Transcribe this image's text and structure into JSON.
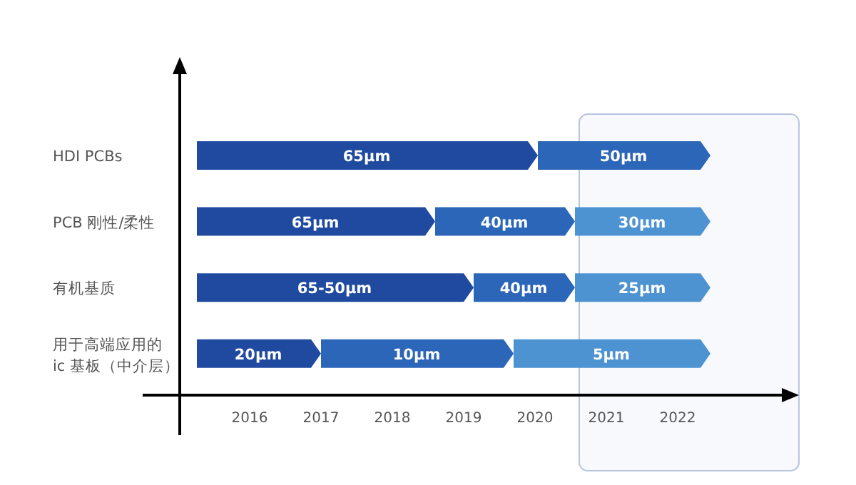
{
  "chart_data": {
    "type": "bar",
    "orientation": "horizontal",
    "categories": [
      "HDI PCBs",
      "PCB 刚性/柔性",
      "有机基质",
      "用于高端应用的 ic 基板（中介层）"
    ],
    "series": [
      {
        "color": "#1f4aa0",
        "base": [
          2015.26,
          2015.26,
          2015.26,
          2015.26
        ],
        "values": [
          4.78,
          3.34,
          3.88,
          1.74
        ]
      },
      {
        "color": "#2b66b8",
        "base": [
          2020.04,
          2018.6,
          2019.14,
          2017.0
        ],
        "values": [
          2.42,
          1.96,
          1.42,
          2.7
        ]
      },
      {
        "color": "#4d93d2",
        "base": [
          null,
          2020.56,
          2020.56,
          2019.7
        ],
        "values": [
          null,
          1.9,
          1.9,
          2.76
        ]
      }
    ],
    "annotations": [
      "65μm",
      "50μm",
      "65μm",
      "40μm",
      "30μm",
      "65-50μm",
      "40μm",
      "25μm",
      "20μm",
      "10μm",
      "5μm"
    ],
    "xlim": [
      2015.02,
      2023.7
    ],
    "xticks": [
      2016,
      2017,
      2018,
      2019,
      2020,
      2021,
      2022
    ],
    "bands": [
      {
        "axis": "x",
        "from": 2020.62,
        "to": 2023.7,
        "color": "#b8c4e0"
      }
    ],
    "grid": false
  }
}
